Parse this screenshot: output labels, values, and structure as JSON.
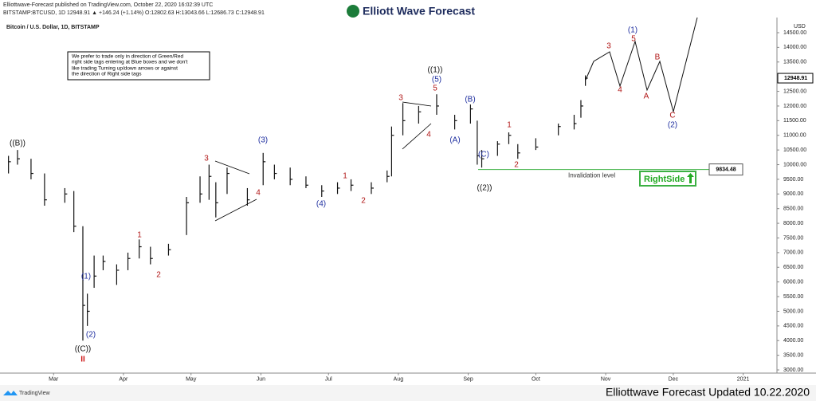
{
  "header": {
    "publisher": "Elliottwave-Forecast published on TradingView.com, October 22, 2020 16:02:39 UTC",
    "symbol": "BITSTAMP:BTCUSD, 1D 12948.91 ▲ +146.24 (+1.14%) O:12802.63 H:13043.66 L:12686.73 C:12948.91",
    "logo": "Elliott Wave Forecast"
  },
  "chart_data": {
    "type": "ohlc",
    "title": "Bitcoin / U.S. Dollar, 1D, BITSTAMP",
    "y_axis_label": "USD",
    "color": "#111111",
    "xlim": [
      39,
      382
    ],
    "xticks": [
      {
        "value": 61,
        "label": "Mar"
      },
      {
        "value": 92,
        "label": "Apr"
      },
      {
        "value": 122,
        "label": "May"
      },
      {
        "value": 153,
        "label": "Jun"
      },
      {
        "value": 183,
        "label": "Jul"
      },
      {
        "value": 214,
        "label": "Aug"
      },
      {
        "value": 245,
        "label": "Sep"
      },
      {
        "value": 275,
        "label": "Oct"
      },
      {
        "value": 306,
        "label": "Nov"
      },
      {
        "value": 336,
        "label": "Dec"
      },
      {
        "value": 367,
        "label": "2021"
      }
    ],
    "ylim": [
      2900,
      15000
    ],
    "yticks": [
      {
        "value": 3000,
        "label": "3000.00"
      },
      {
        "value": 3500,
        "label": "3500.00"
      },
      {
        "value": 4000,
        "label": "4000.00"
      },
      {
        "value": 4500,
        "label": "4500.00"
      },
      {
        "value": 5000,
        "label": "5000.00"
      },
      {
        "value": 5500,
        "label": "5500.00"
      },
      {
        "value": 6000,
        "label": "6000.00"
      },
      {
        "value": 6500,
        "label": "6500.00"
      },
      {
        "value": 7000,
        "label": "7000.00"
      },
      {
        "value": 7500,
        "label": "7500.00"
      },
      {
        "value": 8000,
        "label": "8000.00"
      },
      {
        "value": 8500,
        "label": "8500.00"
      },
      {
        "value": 9000,
        "label": "9000.00"
      },
      {
        "value": 9500,
        "label": "9500.00"
      },
      {
        "value": 10000,
        "label": "10000.00"
      },
      {
        "value": 10500,
        "label": "10500.00"
      },
      {
        "value": 11000,
        "label": "11000.00"
      },
      {
        "value": 11500,
        "label": "11500.00"
      },
      {
        "value": 12000,
        "label": "12000.00"
      },
      {
        "value": 12500,
        "label": "12500.00"
      },
      {
        "value": 13000,
        "label": "13000.00"
      },
      {
        "value": 13500,
        "label": "13500.00"
      },
      {
        "value": 14000,
        "label": "14000.00"
      },
      {
        "value": 14500,
        "label": "14500.00"
      }
    ],
    "bars": [
      {
        "x": 41,
        "high": 10300,
        "low": 9700,
        "close": 10100
      },
      {
        "x": 45,
        "high": 10500,
        "low": 10000,
        "close": 10200
      },
      {
        "x": 51,
        "high": 10200,
        "low": 9500,
        "close": 9700
      },
      {
        "x": 57,
        "high": 9700,
        "low": 8600,
        "close": 8800
      },
      {
        "x": 66,
        "high": 9200,
        "low": 8700,
        "close": 9000
      },
      {
        "x": 70,
        "high": 9100,
        "low": 7700,
        "close": 7900
      },
      {
        "x": 74,
        "high": 7900,
        "low": 4000,
        "close": 5200
      },
      {
        "x": 76,
        "high": 5600,
        "low": 4500,
        "close": 5000
      },
      {
        "x": 79,
        "high": 6900,
        "low": 5800,
        "close": 6200
      },
      {
        "x": 83,
        "high": 6900,
        "low": 6400,
        "close": 6700
      },
      {
        "x": 89,
        "high": 6600,
        "low": 5900,
        "close": 6400
      },
      {
        "x": 94,
        "high": 7000,
        "low": 6400,
        "close": 6800
      },
      {
        "x": 99,
        "high": 7450,
        "low": 6800,
        "close": 7200
      },
      {
        "x": 104,
        "high": 7200,
        "low": 6600,
        "close": 6800
      },
      {
        "x": 112,
        "high": 7300,
        "low": 6900,
        "close": 7100
      },
      {
        "x": 120,
        "high": 8900,
        "low": 7600,
        "close": 8700
      },
      {
        "x": 126,
        "high": 9600,
        "low": 8700,
        "close": 9000
      },
      {
        "x": 130,
        "high": 10000,
        "low": 8800,
        "close": 9600
      },
      {
        "x": 133,
        "high": 9400,
        "low": 8200,
        "close": 8700
      },
      {
        "x": 138,
        "high": 9900,
        "low": 9000,
        "close": 9700
      },
      {
        "x": 147,
        "high": 9200,
        "low": 8600,
        "close": 8800
      },
      {
        "x": 154,
        "high": 10400,
        "low": 9300,
        "close": 10100
      },
      {
        "x": 159,
        "high": 10000,
        "low": 9500,
        "close": 9700
      },
      {
        "x": 166,
        "high": 9900,
        "low": 9300,
        "close": 9500
      },
      {
        "x": 173,
        "high": 9600,
        "low": 9200,
        "close": 9300
      },
      {
        "x": 180,
        "high": 9300,
        "low": 8900,
        "close": 9100
      },
      {
        "x": 187,
        "high": 9400,
        "low": 9000,
        "close": 9200
      },
      {
        "x": 193,
        "high": 9500,
        "low": 9100,
        "close": 9300
      },
      {
        "x": 202,
        "high": 9400,
        "low": 9000,
        "close": 9200
      },
      {
        "x": 209,
        "high": 9800,
        "low": 9400,
        "close": 9600
      },
      {
        "x": 211,
        "high": 11300,
        "low": 9600,
        "close": 11000
      },
      {
        "x": 216,
        "high": 12100,
        "low": 11000,
        "close": 11500
      },
      {
        "x": 223,
        "high": 12000,
        "low": 11400,
        "close": 11800
      },
      {
        "x": 231,
        "high": 12400,
        "low": 11700,
        "close": 12000
      },
      {
        "x": 239,
        "high": 11700,
        "low": 11200,
        "close": 11500
      },
      {
        "x": 246,
        "high": 12050,
        "low": 11400,
        "close": 11900
      },
      {
        "x": 249,
        "high": 11500,
        "low": 10000,
        "close": 10300
      },
      {
        "x": 251,
        "high": 10500,
        "low": 9900,
        "close": 10200
      },
      {
        "x": 258,
        "high": 10800,
        "low": 10300,
        "close": 10700
      },
      {
        "x": 263,
        "high": 11100,
        "low": 10700,
        "close": 11000
      },
      {
        "x": 267,
        "high": 10700,
        "low": 10200,
        "close": 10400
      },
      {
        "x": 275,
        "high": 10900,
        "low": 10500,
        "close": 10600
      },
      {
        "x": 285,
        "high": 11400,
        "low": 11000,
        "close": 11300
      },
      {
        "x": 292,
        "high": 11700,
        "low": 11200,
        "close": 11400
      },
      {
        "x": 295,
        "high": 12200,
        "low": 11600,
        "close": 12000
      },
      {
        "x": 297,
        "high": 13044,
        "low": 12687,
        "close": 12949
      }
    ],
    "last_price": 12948.91,
    "invalidation": {
      "value": 9834.48,
      "label": "Invalidation level",
      "color": "#3cb043"
    },
    "right_side": "RightSide",
    "note": [
      "We prefer to trade only in direction of Green/Red",
      "right side tags entering at Blue boxes and we don't",
      "like trading Turning up/down arrows or against",
      "the direction of Right side tags"
    ],
    "wave_labels": [
      {
        "text": "((B))",
        "color": "#111111"
      },
      {
        "text": "(1)",
        "color": "#1f2fa0"
      },
      {
        "text": "(2)",
        "color": "#1f2fa0"
      },
      {
        "text": "((C))",
        "color": "#111111"
      },
      {
        "text": "II",
        "color": "#cc1111"
      },
      {
        "text": "1",
        "color": "#b01515"
      },
      {
        "text": "2",
        "color": "#b01515"
      },
      {
        "text": "3",
        "color": "#b01515"
      },
      {
        "text": "(3)",
        "color": "#1f2fa0"
      },
      {
        "text": "4",
        "color": "#b01515"
      },
      {
        "text": "(4)",
        "color": "#1f2fa0"
      },
      {
        "text": "1",
        "color": "#b01515"
      },
      {
        "text": "2",
        "color": "#b01515"
      },
      {
        "text": "3",
        "color": "#b01515"
      },
      {
        "text": "5",
        "color": "#b01515"
      },
      {
        "text": "((1))",
        "color": "#111111"
      },
      {
        "text": "(5)",
        "color": "#1f2fa0"
      },
      {
        "text": "4",
        "color": "#b01515"
      },
      {
        "text": "(A)",
        "color": "#1f2fa0"
      },
      {
        "text": "(B)",
        "color": "#1f2fa0"
      },
      {
        "text": "(C)",
        "color": "#1f2fa0"
      },
      {
        "text": "((2))",
        "color": "#111111"
      },
      {
        "text": "1",
        "color": "#b01515"
      },
      {
        "text": "2",
        "color": "#b01515"
      },
      {
        "text": "3",
        "color": "#b01515"
      },
      {
        "text": "4",
        "color": "#b01515"
      },
      {
        "text": "(1)",
        "color": "#1f2fa0"
      },
      {
        "text": "5",
        "color": "#b01515"
      },
      {
        "text": "B",
        "color": "#b01515"
      },
      {
        "text": "A",
        "color": "#b01515"
      },
      {
        "text": "C",
        "color": "#b01515"
      },
      {
        "text": "(2)",
        "color": "#1f2fa0"
      }
    ]
  },
  "footer": {
    "brand": "TradingView",
    "updated": "Elliottwave Forecast Updated 10.22.2020"
  }
}
